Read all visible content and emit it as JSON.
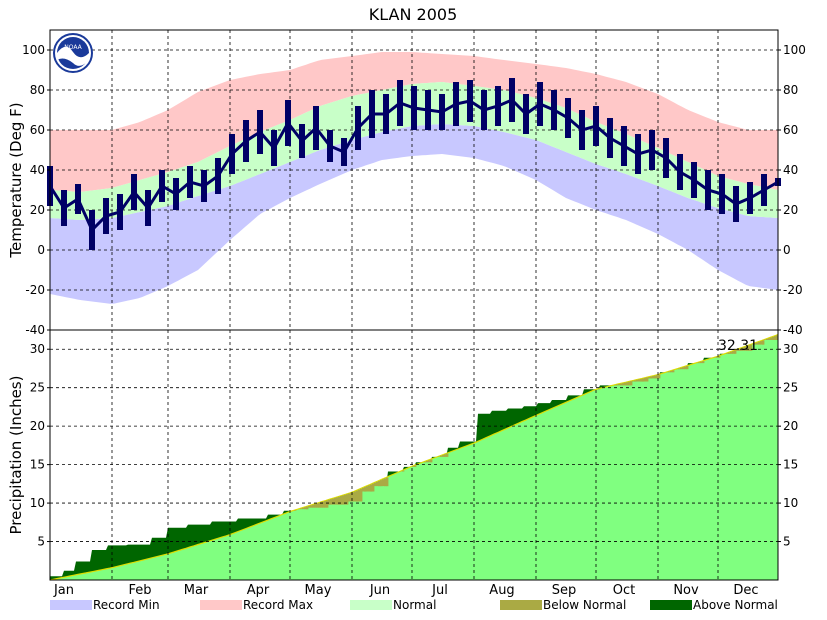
{
  "chart_data": [
    {
      "type": "bar",
      "title": "KLAN 2005",
      "ylabel": "Temperature (Deg F)",
      "ylim": [
        -40,
        110
      ],
      "yticks": [
        -40,
        -20,
        0,
        20,
        40,
        60,
        80,
        100
      ],
      "x_categories": [
        "Jan",
        "Feb",
        "Mar",
        "Apr",
        "May",
        "Jun",
        "Jul",
        "Aug",
        "Sep",
        "Oct",
        "Nov",
        "Dec"
      ],
      "grid": true,
      "right_axis_mirrored": true,
      "series": [
        {
          "name": "Record Max",
          "color": "#ffc8c8",
          "x_day": [
            1,
            16,
            32,
            46,
            60,
            75,
            91,
            106,
            121,
            136,
            152,
            167,
            182,
            197,
            213,
            228,
            244,
            259,
            274,
            289,
            305,
            320,
            335,
            350,
            365
          ],
          "values": [
            60,
            60,
            60,
            64,
            70,
            79,
            85,
            88,
            90,
            95,
            97,
            99,
            99,
            98,
            97,
            95,
            93,
            91,
            88,
            84,
            78,
            70,
            64,
            60,
            60
          ]
        },
        {
          "name": "Normal High",
          "color": "#c8ffc8",
          "x_day": [
            1,
            16,
            32,
            46,
            60,
            75,
            91,
            106,
            121,
            136,
            152,
            167,
            182,
            197,
            213,
            228,
            244,
            259,
            274,
            289,
            305,
            320,
            335,
            350,
            365
          ],
          "values": [
            30,
            29,
            31,
            35,
            39,
            44,
            52,
            59,
            65,
            72,
            77,
            80,
            83,
            84,
            82,
            80,
            76,
            71,
            64,
            58,
            51,
            44,
            37,
            33,
            30
          ]
        },
        {
          "name": "Normal Low",
          "color": "#c8ffc8",
          "x_day": [
            1,
            16,
            32,
            46,
            60,
            75,
            91,
            106,
            121,
            136,
            152,
            167,
            182,
            197,
            213,
            228,
            244,
            259,
            274,
            289,
            305,
            320,
            335,
            350,
            365
          ],
          "values": [
            16,
            15,
            16,
            19,
            22,
            27,
            32,
            38,
            44,
            50,
            55,
            59,
            62,
            63,
            62,
            59,
            55,
            49,
            43,
            38,
            32,
            26,
            21,
            17,
            16
          ]
        },
        {
          "name": "Record Min",
          "color": "#c8c8ff",
          "x_day": [
            1,
            16,
            32,
            46,
            60,
            75,
            91,
            106,
            121,
            136,
            152,
            167,
            182,
            197,
            213,
            228,
            244,
            259,
            274,
            289,
            305,
            320,
            335,
            350,
            365
          ],
          "values": [
            -22,
            -25,
            -27,
            -24,
            -18,
            -10,
            5,
            18,
            26,
            33,
            40,
            45,
            47,
            48,
            46,
            42,
            35,
            26,
            20,
            15,
            8,
            0,
            -10,
            -18,
            -20
          ]
        },
        {
          "name": "Observed High",
          "color": "#000066",
          "x_day": [
            1,
            8,
            15,
            22,
            29,
            36,
            43,
            50,
            57,
            64,
            71,
            78,
            85,
            92,
            99,
            106,
            113,
            120,
            127,
            134,
            141,
            148,
            155,
            162,
            169,
            176,
            183,
            190,
            197,
            204,
            211,
            218,
            225,
            232,
            239,
            246,
            253,
            260,
            267,
            274,
            281,
            288,
            295,
            302,
            309,
            316,
            323,
            330,
            337,
            344,
            351,
            358,
            365
          ],
          "values": [
            42,
            30,
            33,
            20,
            26,
            28,
            38,
            30,
            40,
            36,
            42,
            40,
            46,
            58,
            65,
            70,
            60,
            75,
            63,
            72,
            60,
            56,
            72,
            80,
            78,
            85,
            82,
            80,
            78,
            84,
            85,
            80,
            82,
            86,
            78,
            84,
            80,
            76,
            70,
            72,
            66,
            62,
            58,
            60,
            56,
            48,
            44,
            40,
            38,
            32,
            34,
            38,
            36
          ]
        },
        {
          "name": "Observed Low",
          "color": "#000066",
          "x_day": [
            1,
            8,
            15,
            22,
            29,
            36,
            43,
            50,
            57,
            64,
            71,
            78,
            85,
            92,
            99,
            106,
            113,
            120,
            127,
            134,
            141,
            148,
            155,
            162,
            169,
            176,
            183,
            190,
            197,
            204,
            211,
            218,
            225,
            232,
            239,
            246,
            253,
            260,
            267,
            274,
            281,
            288,
            295,
            302,
            309,
            316,
            323,
            330,
            337,
            344,
            351,
            358,
            365
          ],
          "values": [
            22,
            12,
            18,
            0,
            8,
            10,
            20,
            12,
            24,
            20,
            26,
            24,
            28,
            38,
            44,
            48,
            42,
            52,
            46,
            50,
            44,
            42,
            50,
            56,
            58,
            62,
            60,
            60,
            60,
            62,
            64,
            60,
            62,
            64,
            58,
            62,
            60,
            56,
            50,
            52,
            46,
            42,
            38,
            40,
            36,
            30,
            26,
            20,
            18,
            14,
            18,
            22,
            32
          ]
        }
      ]
    },
    {
      "type": "area",
      "ylabel": "Precipitation (Inches)",
      "ylim": [
        0,
        32.5
      ],
      "yticks": [
        5,
        10,
        15,
        20,
        25,
        30
      ],
      "x_categories": [
        "Jan",
        "Feb",
        "Mar",
        "Apr",
        "May",
        "Jun",
        "Jul",
        "Aug",
        "Sep",
        "Oct",
        "Nov",
        "Dec"
      ],
      "grid": true,
      "annotation": "32.31",
      "series": [
        {
          "name": "Normal",
          "color": "#80ff80",
          "x_day": [
            1,
            32,
            60,
            91,
            121,
            152,
            182,
            213,
            244,
            274,
            305,
            335,
            365
          ],
          "values": [
            0.0,
            1.6,
            3.4,
            5.9,
            8.9,
            11.4,
            14.8,
            17.8,
            21.4,
            24.8,
            26.7,
            29.1,
            31.9
          ]
        },
        {
          "name": "Observed",
          "color": "#006600",
          "x_day": [
            1,
            8,
            14,
            22,
            30,
            40,
            52,
            60,
            70,
            82,
            95,
            110,
            118,
            124,
            130,
            140,
            150,
            157,
            163,
            170,
            178,
            184,
            192,
            200,
            206,
            215,
            222,
            230,
            238,
            245,
            252,
            260,
            268,
            276,
            285,
            292,
            300,
            306,
            313,
            320,
            328,
            336,
            344,
            352,
            358,
            365
          ],
          "values": [
            0.5,
            1.2,
            2.4,
            3.9,
            4.5,
            4.6,
            5.5,
            6.8,
            7.2,
            7.6,
            8.0,
            8.5,
            9.0,
            9.2,
            9.4,
            9.8,
            10.2,
            11.5,
            12.2,
            14.1,
            14.7,
            15.3,
            16.0,
            17.2,
            18.0,
            21.6,
            22.0,
            22.3,
            22.6,
            23.0,
            23.4,
            24.0,
            24.8,
            25.3,
            25.3,
            25.8,
            26.2,
            27.0,
            27.4,
            28.2,
            28.9,
            29.4,
            29.8,
            30.6,
            31.2,
            32.31
          ]
        }
      ]
    }
  ],
  "legend": [
    {
      "label": "Record Min",
      "color": "#c8c8ff"
    },
    {
      "label": "Record Max",
      "color": "#ffc8c8"
    },
    {
      "label": "Normal",
      "color": "#c8ffc8"
    },
    {
      "label": "Below Normal",
      "color": "#aaaa44"
    },
    {
      "label": "Above Normal",
      "color": "#006600"
    }
  ],
  "logo": {
    "text": "NOAA",
    "icon": "noaa-logo-icon",
    "color": "#1a3a9a"
  }
}
